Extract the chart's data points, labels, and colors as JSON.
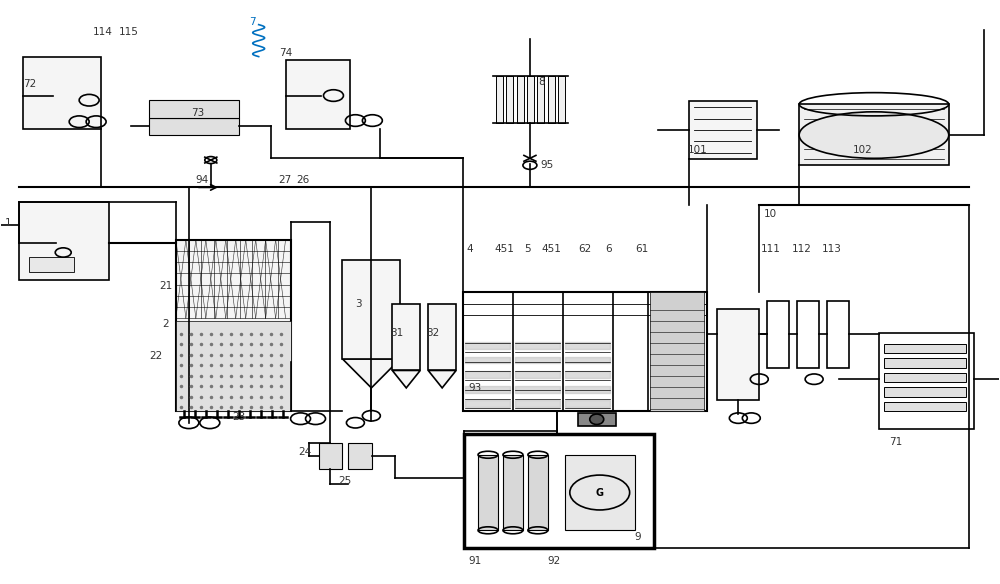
{
  "bg_color": "#ffffff",
  "line_color": "#000000",
  "line_width": 1.2
}
